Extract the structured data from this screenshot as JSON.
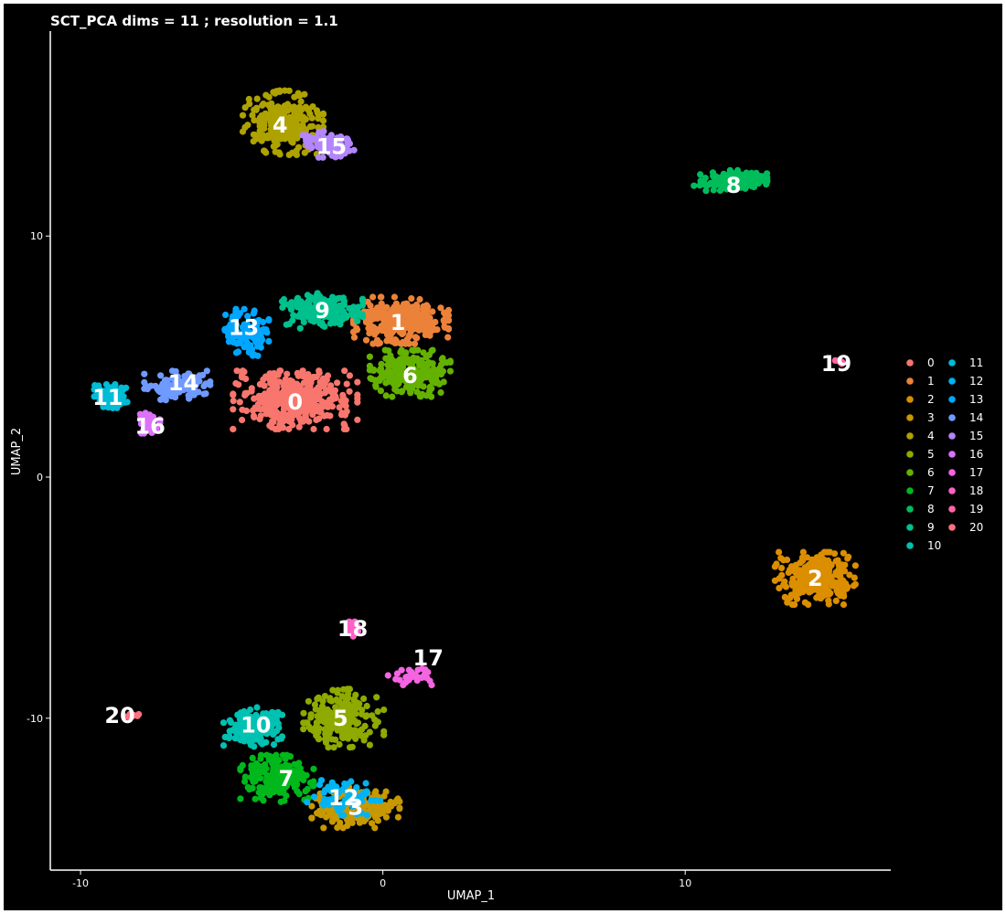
{
  "chart_data": {
    "type": "scatter",
    "title": "SCT_PCA dims =  11 ; resolution = 1.1",
    "xlabel": "UMAP_1",
    "ylabel": "UMAP_2",
    "xlim": [
      -11,
      16.8
    ],
    "ylim": [
      -16.3,
      18.5
    ],
    "x_ticks": [
      -10,
      0,
      10
    ],
    "y_ticks": [
      -10,
      0,
      10
    ],
    "grid": false,
    "legend_position": "right",
    "legend_columns": 2,
    "background": "#000000",
    "clusters": [
      {
        "id": "0",
        "label": "0",
        "color": "#F8766D",
        "center": [
          -2.9,
          3.2
        ],
        "spread": [
          1.7,
          1.0
        ],
        "count": 420
      },
      {
        "id": "1",
        "label": "1",
        "color": "#EC8239",
        "center": [
          0.6,
          6.5
        ],
        "spread": [
          1.3,
          0.8
        ],
        "count": 300
      },
      {
        "id": "2",
        "label": "2",
        "color": "#DB8E00",
        "center": [
          14.3,
          -4.2
        ],
        "spread": [
          1.1,
          0.9
        ],
        "count": 260
      },
      {
        "id": "3",
        "label": "3",
        "color": "#C79800",
        "center": [
          -0.9,
          -13.7
        ],
        "spread": [
          1.2,
          0.7
        ],
        "count": 200
      },
      {
        "id": "4",
        "label": "4",
        "color": "#AEA200",
        "center": [
          -3.3,
          14.7
        ],
        "spread": [
          1.1,
          1.1
        ],
        "count": 260
      },
      {
        "id": "5",
        "label": "5",
        "color": "#8FAA00",
        "center": [
          -1.3,
          -10.0
        ],
        "spread": [
          1.1,
          1.0
        ],
        "count": 220
      },
      {
        "id": "6",
        "label": "6",
        "color": "#64B200",
        "center": [
          0.9,
          4.3
        ],
        "spread": [
          1.1,
          0.8
        ],
        "count": 220
      },
      {
        "id": "7",
        "label": "7",
        "color": "#00B81B",
        "center": [
          -3.5,
          -12.5
        ],
        "spread": [
          1.0,
          0.8
        ],
        "count": 200
      },
      {
        "id": "8",
        "label": "8",
        "color": "#00BD5C",
        "center": [
          11.5,
          12.3
        ],
        "spread": [
          1.0,
          0.35
        ],
        "count": 150
      },
      {
        "id": "9",
        "label": "9",
        "color": "#00C08E",
        "center": [
          -2.0,
          6.9
        ],
        "spread": [
          1.1,
          0.6
        ],
        "count": 200
      },
      {
        "id": "10",
        "label": "10",
        "color": "#00C1B2",
        "center": [
          -4.3,
          -10.4
        ],
        "spread": [
          0.8,
          0.7
        ],
        "count": 160
      },
      {
        "id": "11",
        "label": "11",
        "color": "#00BCD6",
        "center": [
          -9.0,
          3.3
        ],
        "spread": [
          0.45,
          0.45
        ],
        "count": 110
      },
      {
        "id": "12",
        "label": "12",
        "color": "#00B3F2",
        "center": [
          -1.3,
          -13.3
        ],
        "spread": [
          1.0,
          0.6
        ],
        "count": 70
      },
      {
        "id": "13",
        "label": "13",
        "color": "#00A6FF",
        "center": [
          -4.5,
          6.0
        ],
        "spread": [
          0.6,
          0.8
        ],
        "count": 110
      },
      {
        "id": "14",
        "label": "14",
        "color": "#6F9AFF",
        "center": [
          -6.8,
          3.8
        ],
        "spread": [
          0.9,
          0.5
        ],
        "count": 110
      },
      {
        "id": "15",
        "label": "15",
        "color": "#B385FF",
        "center": [
          -1.8,
          13.8
        ],
        "spread": [
          0.7,
          0.45
        ],
        "count": 90
      },
      {
        "id": "16",
        "label": "16",
        "color": "#DC71FA",
        "center": [
          -7.8,
          2.3
        ],
        "spread": [
          0.35,
          0.4
        ],
        "count": 45
      },
      {
        "id": "17",
        "label": "17",
        "color": "#F564E3",
        "center": [
          1.0,
          -8.2
        ],
        "spread": [
          0.7,
          0.35
        ],
        "count": 30
      },
      {
        "id": "18",
        "label": "18",
        "color": "#FF61C6",
        "center": [
          -1.0,
          -6.3
        ],
        "spread": [
          0.2,
          0.25
        ],
        "count": 30
      },
      {
        "id": "19",
        "label": "19",
        "color": "#FF67A4",
        "center": [
          15.1,
          4.8
        ],
        "spread": [
          0.15,
          0.1
        ],
        "count": 6
      },
      {
        "id": "20",
        "label": "20",
        "color": "#FC717F",
        "center": [
          -8.3,
          -9.9
        ],
        "spread": [
          0.3,
          0.08
        ],
        "count": 10
      }
    ],
    "cluster_label_positions": [
      {
        "label": "0",
        "x": -2.9,
        "y": 3.1
      },
      {
        "label": "1",
        "x": 0.5,
        "y": 6.4
      },
      {
        "label": "2",
        "x": 14.3,
        "y": -4.2
      },
      {
        "label": "3",
        "x": -0.9,
        "y": -13.7
      },
      {
        "label": "4",
        "x": -3.4,
        "y": 14.6
      },
      {
        "label": "5",
        "x": -1.4,
        "y": -10.0
      },
      {
        "label": "6",
        "x": 0.9,
        "y": 4.2
      },
      {
        "label": "7",
        "x": -3.2,
        "y": -12.5
      },
      {
        "label": "8",
        "x": 11.6,
        "y": 12.1
      },
      {
        "label": "9",
        "x": -2.0,
        "y": 6.9
      },
      {
        "label": "10",
        "x": -4.2,
        "y": -10.3
      },
      {
        "label": "11",
        "x": -9.1,
        "y": 3.3
      },
      {
        "label": "12",
        "x": -1.3,
        "y": -13.3
      },
      {
        "label": "13",
        "x": -4.6,
        "y": 6.2
      },
      {
        "label": "14",
        "x": -6.6,
        "y": 3.9
      },
      {
        "label": "15",
        "x": -1.7,
        "y": 13.7
      },
      {
        "label": "16",
        "x": -7.7,
        "y": 2.1
      },
      {
        "label": "17",
        "x": 1.5,
        "y": -7.5
      },
      {
        "label": "18",
        "x": -1.0,
        "y": -6.3
      },
      {
        "label": "19",
        "x": 15.0,
        "y": 4.7
      },
      {
        "label": "20",
        "x": -8.7,
        "y": -9.9
      }
    ],
    "legend_entries": [
      "0",
      "1",
      "2",
      "3",
      "4",
      "5",
      "6",
      "7",
      "8",
      "9",
      "10",
      "11",
      "12",
      "13",
      "14",
      "15",
      "16",
      "17",
      "18",
      "19",
      "20"
    ]
  }
}
